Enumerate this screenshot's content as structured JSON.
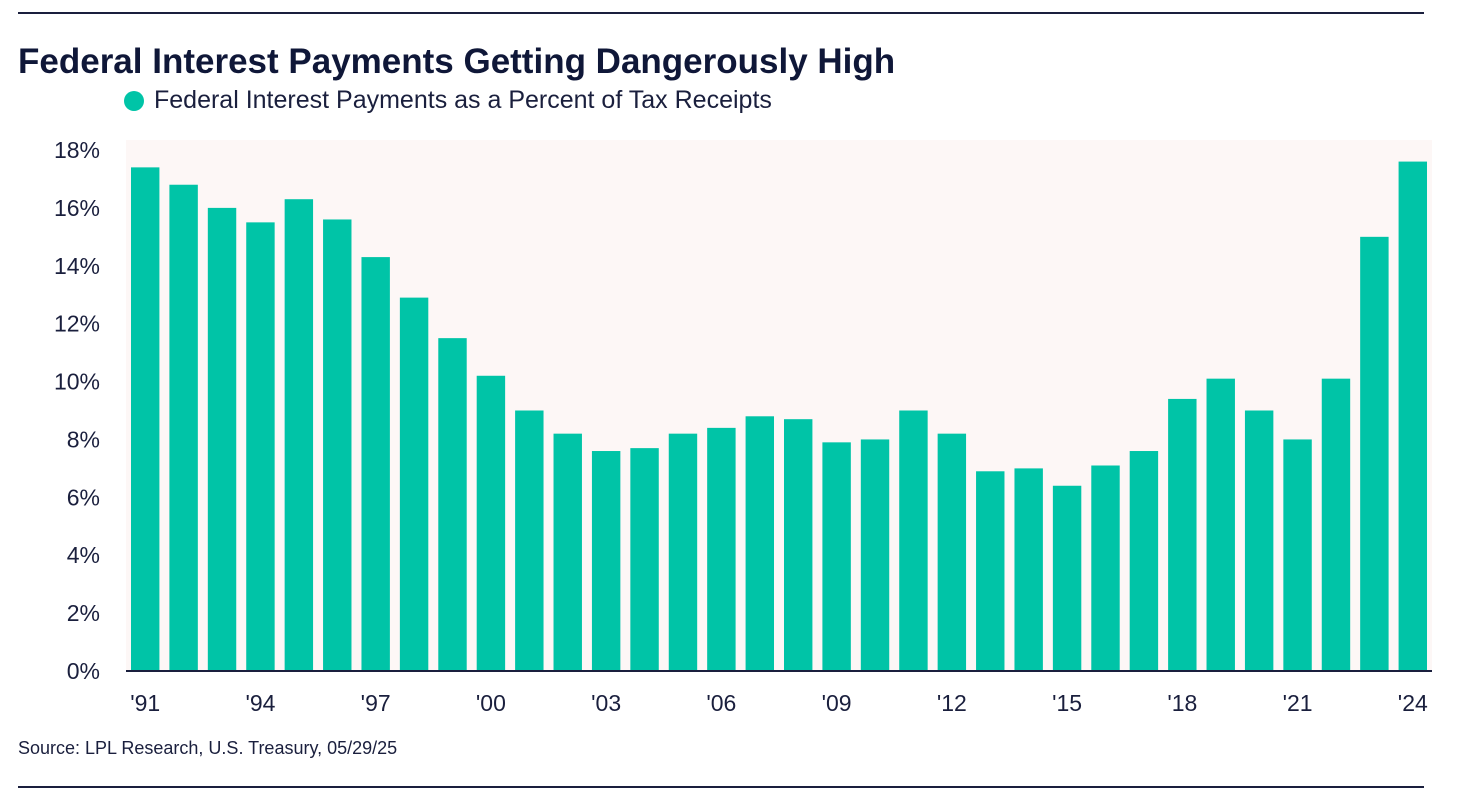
{
  "chart_data": {
    "type": "bar",
    "title": "Federal Interest Payments Getting Dangerously High",
    "source": "Source: LPL Research, U.S. Treasury, 05/29/25",
    "series": [
      {
        "name": "Federal Interest Payments as a Percent of Tax Receipts",
        "color": "#00c4a7",
        "values": [
          17.4,
          16.8,
          16.0,
          15.5,
          16.3,
          15.6,
          14.3,
          12.9,
          11.5,
          10.2,
          9.0,
          8.2,
          7.6,
          7.7,
          8.2,
          8.4,
          8.8,
          8.7,
          7.9,
          8.0,
          9.0,
          8.2,
          6.9,
          7.0,
          6.4,
          7.1,
          7.6,
          9.4,
          10.1,
          9.0,
          8.0,
          10.1,
          15.0,
          17.6
        ]
      }
    ],
    "categories": [
      "'91",
      "'92",
      "'93",
      "'94",
      "'95",
      "'96",
      "'97",
      "'98",
      "'99",
      "'00",
      "'01",
      "'02",
      "'03",
      "'04",
      "'05",
      "'06",
      "'07",
      "'08",
      "'09",
      "'10",
      "'11",
      "'12",
      "'13",
      "'14",
      "'15",
      "'16",
      "'17",
      "'18",
      "'19",
      "'20",
      "'21",
      "'22",
      "'23",
      "'24"
    ],
    "x_tick_labels": [
      "'91",
      "'94",
      "'97",
      "'00",
      "'03",
      "'06",
      "'09",
      "'12",
      "'15",
      "'18",
      "'21",
      "'24"
    ],
    "y_tick_labels": [
      "0%",
      "2%",
      "4%",
      "6%",
      "8%",
      "10%",
      "12%",
      "14%",
      "16%",
      "18%"
    ],
    "ylim": [
      0,
      18
    ],
    "grid": false,
    "legend_position": "top-left",
    "colors": {
      "bar": "#00c4a7",
      "plot_background": "#fdf7f6",
      "text": "#1a1f3d",
      "title": "#0f1738"
    }
  }
}
